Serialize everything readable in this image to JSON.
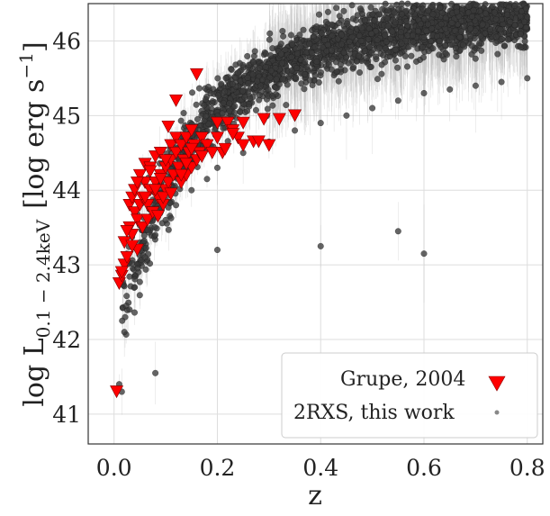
{
  "chart_data": {
    "type": "scatter",
    "xlabel": "z",
    "ylabel": {
      "prefix": "log L",
      "subscript": "0.1 − 2.4keV",
      "unit_prefix": "[log erg s",
      "unit_sup": "−1",
      "unit_suffix": "]"
    },
    "xlim": [
      -0.05,
      0.83
    ],
    "ylim": [
      40.6,
      46.5
    ],
    "x_ticks": [
      0.0,
      0.2,
      0.4,
      0.6,
      0.8
    ],
    "x_tick_labels": [
      "0.0",
      "0.2",
      "0.4",
      "0.6",
      "0.8"
    ],
    "y_ticks": [
      41,
      42,
      43,
      44,
      45,
      46
    ],
    "y_tick_labels": [
      "41",
      "42",
      "43",
      "44",
      "45",
      "46"
    ],
    "grid": true,
    "legend_position": "lower right",
    "series": [
      {
        "name": "Grupe, 2004",
        "marker": "down-triangle",
        "color": "#ff0000",
        "x": [
          0.005,
          0.01,
          0.015,
          0.02,
          0.02,
          0.025,
          0.03,
          0.03,
          0.035,
          0.035,
          0.04,
          0.04,
          0.045,
          0.05,
          0.05,
          0.055,
          0.06,
          0.06,
          0.065,
          0.07,
          0.07,
          0.075,
          0.08,
          0.08,
          0.085,
          0.09,
          0.09,
          0.095,
          0.1,
          0.1,
          0.105,
          0.11,
          0.11,
          0.115,
          0.12,
          0.12,
          0.125,
          0.13,
          0.13,
          0.135,
          0.14,
          0.14,
          0.145,
          0.15,
          0.15,
          0.155,
          0.16,
          0.165,
          0.17,
          0.18,
          0.19,
          0.2,
          0.21,
          0.22,
          0.23,
          0.24,
          0.25,
          0.27,
          0.29,
          0.3,
          0.32,
          0.35,
          0.105,
          0.12,
          0.16,
          0.045,
          0.055,
          0.065,
          0.075,
          0.085,
          0.095,
          0.035,
          0.025,
          0.015,
          0.045,
          0.06,
          0.07,
          0.08,
          0.09,
          0.1,
          0.11,
          0.13,
          0.14,
          0.15,
          0.17,
          0.2,
          0.215,
          0.23,
          0.25,
          0.28
        ],
        "y": [
          41.3,
          42.75,
          42.85,
          43.0,
          43.3,
          43.1,
          43.5,
          43.8,
          43.4,
          43.9,
          43.7,
          44.0,
          43.6,
          43.8,
          44.2,
          43.9,
          44.1,
          44.35,
          43.8,
          44.0,
          44.3,
          43.7,
          44.1,
          44.45,
          43.9,
          44.2,
          44.5,
          43.8,
          44.0,
          44.3,
          44.1,
          44.4,
          44.6,
          44.2,
          44.5,
          44.7,
          44.3,
          44.1,
          44.6,
          44.4,
          44.2,
          44.7,
          44.5,
          44.3,
          44.8,
          44.6,
          44.4,
          44.5,
          44.7,
          44.6,
          44.5,
          44.9,
          44.5,
          44.9,
          44.8,
          44.7,
          44.9,
          44.65,
          44.95,
          44.6,
          44.95,
          45.0,
          44.85,
          45.2,
          45.55,
          43.2,
          43.5,
          43.6,
          43.7,
          43.65,
          43.9,
          43.25,
          43.45,
          42.9,
          44.1,
          43.9,
          44.25,
          44.0,
          44.15,
          44.4,
          43.95,
          44.2,
          44.35,
          44.55,
          44.45,
          44.7,
          44.55,
          44.75,
          44.6,
          44.65
        ]
      },
      {
        "name": "2RXS, this work",
        "marker": "circle",
        "color": "#3a3a3a",
        "n_points": 2300,
        "trend": "log L rises steeply from ~42.3 at z≈0.02 to ~44.3 at z≈0.2, ~44.9 at z≈0.4, ~45.3 at z≈0.6 and ~45.5 at z≈0.8",
        "x": [
          0.01,
          0.02,
          0.03,
          0.04,
          0.06,
          0.08,
          0.1,
          0.12,
          0.15,
          0.18,
          0.2,
          0.25,
          0.3,
          0.35,
          0.4,
          0.45,
          0.5,
          0.55,
          0.6,
          0.65,
          0.7,
          0.75,
          0.8,
          0.015,
          0.4,
          0.6,
          0.2,
          0.55,
          0.08,
          0.63
        ],
        "y": [
          41.4,
          42.1,
          42.4,
          42.7,
          43.1,
          43.4,
          43.6,
          43.8,
          44.0,
          44.15,
          44.3,
          44.5,
          44.65,
          44.8,
          44.9,
          45.0,
          45.1,
          45.2,
          45.3,
          45.35,
          45.4,
          45.45,
          45.5,
          41.3,
          43.25,
          43.15,
          43.2,
          43.45,
          41.55,
          46.0
        ]
      }
    ]
  }
}
